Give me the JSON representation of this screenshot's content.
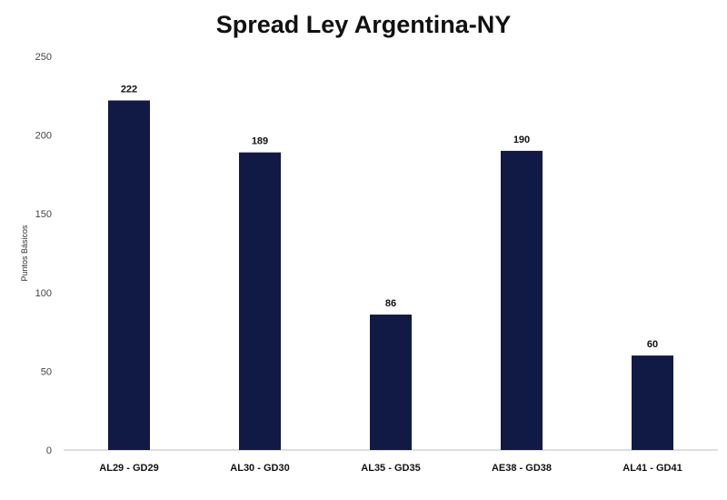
{
  "chart_data": {
    "type": "bar",
    "title": "Spread Ley Argentina-NY",
    "xlabel": "",
    "ylabel": "Puntos Básicos",
    "categories": [
      "AL29 - GD29",
      "AL30 - GD30",
      "AL35 - GD35",
      "AE38 - GD38",
      "AL41 - GD41"
    ],
    "values": [
      222,
      189,
      86,
      190,
      60
    ],
    "ylim": [
      0,
      250
    ],
    "yticks": [
      0,
      50,
      100,
      150,
      200,
      250
    ],
    "grid": false,
    "legend": "none",
    "bar_color": "#111a45"
  }
}
